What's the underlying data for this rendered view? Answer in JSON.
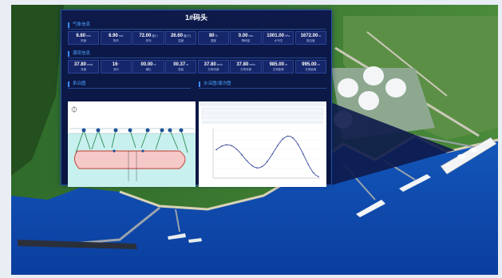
{
  "panel": {
    "title": "1#码头"
  },
  "weather": {
    "title": "气象信息",
    "items": [
      {
        "value": "6.80",
        "unit": "m/s",
        "label": "风速"
      },
      {
        "value": "6.90",
        "unit": "m/s",
        "label": "阵风"
      },
      {
        "value": "72.00",
        "unit": "度(°)",
        "label": "风向"
      },
      {
        "value": "26.60",
        "unit": "度(℃)",
        "label": "温度"
      },
      {
        "value": "80",
        "unit": "%",
        "label": "湿度"
      },
      {
        "value": "0.00",
        "unit": "mm",
        "label": "降雨量"
      },
      {
        "value": "1001.00",
        "unit": "hPa",
        "label": "大气压"
      },
      {
        "value": "1672.00",
        "unit": "m",
        "label": "能见度"
      }
    ]
  },
  "hydro": {
    "title": "潮流信息",
    "items": [
      {
        "value": "37.80",
        "unit": "cm/s",
        "label": "流速"
      },
      {
        "value": "16",
        "unit": "°",
        "label": "流向"
      },
      {
        "value": "00.00",
        "unit": "m",
        "label": "潮位"
      },
      {
        "value": "00.37",
        "unit": "m",
        "label": "浪高"
      },
      {
        "value": "37.80",
        "unit": "cm/s",
        "label": "左侧流速"
      },
      {
        "value": "37.80",
        "unit": "cm/s",
        "label": "左侧流速"
      },
      {
        "value": "985.00",
        "unit": "m",
        "label": "左侧距离"
      },
      {
        "value": "995.00",
        "unit": "m",
        "label": "右侧距离"
      }
    ]
  },
  "mooring": {
    "title": "系泊图"
  },
  "waves": {
    "title": "水深图/潮汐图"
  },
  "colors": {
    "panel_bg": "#0d1a4a",
    "accent": "#3a8cff",
    "card_bg": "#16266a"
  }
}
